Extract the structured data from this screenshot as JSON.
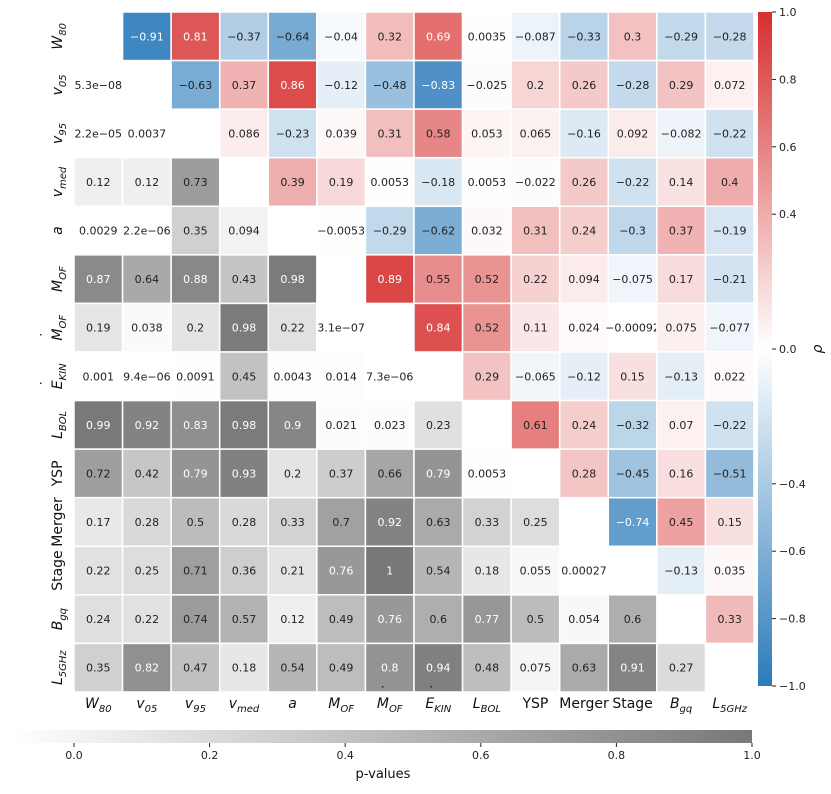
{
  "chart_data": {
    "type": "heatmap",
    "title": "",
    "variables": [
      "W80",
      "v05",
      "v95",
      "vmed",
      "a",
      "MOF",
      "ṀOF",
      "ĖKIN",
      "LBOL",
      "YSP",
      "Merger",
      "Stage",
      "Bgq",
      "L5GHz"
    ],
    "labels": [
      {
        "base": "W",
        "sub": "80",
        "dot": false
      },
      {
        "base": "v",
        "sub": "05",
        "dot": false
      },
      {
        "base": "v",
        "sub": "95",
        "dot": false
      },
      {
        "base": "v",
        "sub": "med",
        "dot": false
      },
      {
        "base": "a",
        "sub": "",
        "dot": false
      },
      {
        "base": "M",
        "sub": "OF",
        "dot": false
      },
      {
        "base": "M",
        "sub": "OF",
        "dot": true
      },
      {
        "base": "E",
        "sub": "KIN",
        "dot": true
      },
      {
        "base": "L",
        "sub": "BOL",
        "dot": false
      },
      {
        "base": "YSP",
        "sub": "",
        "dot": false
      },
      {
        "base": "Merger",
        "sub": "",
        "dot": false
      },
      {
        "base": "Stage",
        "sub": "",
        "dot": false
      },
      {
        "base": "B",
        "sub": "gq",
        "dot": false
      },
      {
        "base": "L",
        "sub": "5GHz",
        "dot": false
      }
    ],
    "upper_triangle": "Spearman correlation coefficient rho",
    "lower_triangle": "p-values",
    "matrix": [
      [
        "",
        "-0.91",
        "0.81",
        "-0.37",
        "-0.64",
        "-0.04",
        "0.32",
        "0.69",
        "0.0035",
        "-0.087",
        "-0.33",
        "0.3",
        "-0.29",
        "-0.28"
      ],
      [
        "5.3e-08",
        "",
        "-0.63",
        "0.37",
        "0.86",
        "-0.12",
        "-0.48",
        "-0.83",
        "-0.025",
        "0.2",
        "0.26",
        "-0.28",
        "0.29",
        "0.072"
      ],
      [
        "2.2e-05",
        "0.0037",
        "",
        "0.086",
        "-0.23",
        "0.039",
        "0.31",
        "0.58",
        "0.053",
        "0.065",
        "-0.16",
        "0.092",
        "-0.082",
        "-0.22"
      ],
      [
        "0.12",
        "0.12",
        "0.73",
        "",
        "0.39",
        "0.19",
        "0.0053",
        "-0.18",
        "0.0053",
        "-0.022",
        "0.26",
        "-0.22",
        "0.14",
        "0.4"
      ],
      [
        "0.0029",
        "2.2e-06",
        "0.35",
        "0.094",
        "",
        "-0.0053",
        "-0.29",
        "-0.62",
        "0.032",
        "0.31",
        "0.24",
        "-0.3",
        "0.37",
        "-0.19"
      ],
      [
        "0.87",
        "0.64",
        "0.88",
        "0.43",
        "0.98",
        "",
        "0.89",
        "0.55",
        "0.52",
        "0.22",
        "0.094",
        "-0.075",
        "0.17",
        "-0.21"
      ],
      [
        "0.19",
        "0.038",
        "0.2",
        "0.98",
        "0.22",
        "3.1e-07",
        "",
        "0.84",
        "0.52",
        "0.11",
        "0.024",
        "-0.00092",
        "0.075",
        "-0.077"
      ],
      [
        "0.001",
        "9.4e-06",
        "0.0091",
        "0.45",
        "0.0043",
        "0.014",
        "7.3e-06",
        "",
        "0.29",
        "-0.065",
        "-0.12",
        "0.15",
        "-0.13",
        "0.022"
      ],
      [
        "0.99",
        "0.92",
        "0.83",
        "0.98",
        "0.9",
        "0.021",
        "0.023",
        "0.23",
        "",
        "0.61",
        "0.24",
        "-0.32",
        "0.07",
        "-0.22"
      ],
      [
        "0.72",
        "0.42",
        "0.79",
        "0.93",
        "0.2",
        "0.37",
        "0.66",
        "0.79",
        "0.0053",
        "",
        "0.28",
        "-0.45",
        "0.16",
        "-0.51"
      ],
      [
        "0.17",
        "0.28",
        "0.5",
        "0.28",
        "0.33",
        "0.7",
        "0.92",
        "0.63",
        "0.33",
        "0.25",
        "",
        "-0.74",
        "0.45",
        "0.15"
      ],
      [
        "0.22",
        "0.25",
        "0.71",
        "0.36",
        "0.21",
        "0.76",
        "1",
        "0.54",
        "0.18",
        "0.055",
        "0.00027",
        "",
        "-0.13",
        "0.035"
      ],
      [
        "0.24",
        "0.22",
        "0.74",
        "0.57",
        "0.12",
        "0.49",
        "0.76",
        "0.6",
        "0.77",
        "0.5",
        "0.054",
        "0.6",
        "",
        "0.33"
      ],
      [
        "0.35",
        "0.82",
        "0.47",
        "0.18",
        "0.54",
        "0.49",
        "0.8",
        "0.94",
        "0.48",
        "0.075",
        "0.63",
        "0.91",
        "0.27",
        ""
      ]
    ],
    "colorbar_rho": {
      "label": "ρ",
      "range": [
        -1.0,
        1.0
      ],
      "ticks": [
        -1.0,
        -0.8,
        -0.6,
        -0.4,
        0.0,
        0.4,
        0.6,
        0.8,
        1.0
      ],
      "tick_labels": [
        "−1.0",
        "−0.8",
        "−0.6",
        "−0.4",
        "0.0",
        "0.4",
        "0.6",
        "0.8",
        "1.0"
      ],
      "colormap": [
        "#2b7bba",
        "#ffffff",
        "#d62f2f"
      ]
    },
    "colorbar_p": {
      "label": "p-values",
      "range": [
        0.0,
        1.0
      ],
      "ticks": [
        0.0,
        0.2,
        0.4,
        0.6,
        0.8,
        1.0
      ],
      "tick_labels": [
        "0.0",
        "0.2",
        "0.4",
        "0.6",
        "0.8",
        "1.0"
      ],
      "colormap": [
        "#ffffff",
        "#787878"
      ]
    }
  }
}
